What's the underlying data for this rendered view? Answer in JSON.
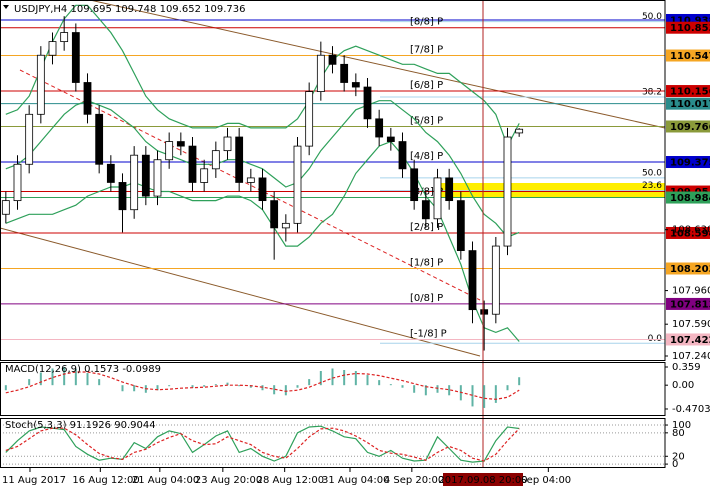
{
  "chart_data": [
    {
      "type": "candlestick",
      "title": "USDJPY,H4",
      "xlim": [
        -0.5,
        56.5
      ],
      "xticks": [
        {
          "value": 2.07,
          "label": "11 Aug 2017"
        },
        {
          "value": 8.1,
          "label": "16 Aug 12:00"
        },
        {
          "value": 13.2,
          "label": "21 Aug 04:00"
        },
        {
          "value": 18.6,
          "label": "23 Aug 20:00"
        },
        {
          "value": 23.9,
          "label": "28 Aug 12:00"
        },
        {
          "value": 29.5,
          "label": "31 Aug 04:00"
        },
        {
          "value": 34.8,
          "label": "4 Sep 20:00"
        },
        {
          "value": 46.5,
          "label": "Sep 04:00"
        }
      ],
      "current_x": {
        "value": 40.9,
        "label": "2017.09.08 20:00"
      },
      "ylim": [
        107.196,
        111.158
      ],
      "yticks": [
        {
          "value": 107.24,
          "label": "107.240"
        },
        {
          "value": 107.59,
          "label": "107.590"
        },
        {
          "value": 107.96,
          "label": "107.960"
        },
        {
          "value": 108.63,
          "label": "108.630"
        }
      ],
      "open": [
        108.8,
        108.95,
        109.35,
        109.9,
        110.55,
        110.7,
        110.8,
        110.25,
        109.9,
        109.35,
        109.15,
        108.85,
        109.45,
        109.0,
        109.4,
        109.6,
        109.55,
        109.15,
        109.3,
        109.5,
        109.65,
        109.15,
        109.2,
        108.95,
        108.65,
        108.7,
        109.55,
        110.15,
        110.55,
        110.45,
        110.25,
        110.2,
        109.85,
        109.65,
        109.6,
        109.3,
        108.95,
        108.75,
        109.2,
        108.95,
        108.4,
        107.75,
        107.7,
        108.45,
        109.695
      ],
      "high": [
        109.05,
        109.45,
        110.0,
        110.65,
        110.8,
        110.98,
        110.9,
        110.35,
        110.0,
        109.45,
        109.25,
        109.55,
        109.55,
        109.5,
        109.7,
        109.7,
        109.65,
        109.4,
        109.6,
        109.75,
        109.75,
        109.3,
        109.3,
        109.05,
        108.8,
        109.65,
        110.25,
        110.7,
        110.65,
        110.55,
        110.35,
        110.3,
        109.95,
        109.75,
        109.7,
        109.4,
        109.05,
        109.3,
        109.3,
        109.05,
        108.5,
        107.85,
        108.55,
        109.75,
        109.748
      ],
      "low": [
        108.7,
        108.85,
        109.25,
        109.8,
        110.45,
        110.6,
        110.15,
        109.8,
        109.25,
        109.05,
        108.6,
        108.75,
        108.9,
        108.9,
        109.3,
        109.45,
        109.05,
        109.05,
        109.2,
        109.4,
        109.05,
        109.05,
        108.85,
        108.3,
        108.5,
        108.6,
        109.45,
        110.05,
        110.35,
        110.15,
        110.1,
        109.75,
        109.55,
        109.5,
        109.2,
        108.85,
        108.65,
        108.65,
        108.85,
        108.3,
        107.6,
        107.3,
        107.6,
        108.35,
        109.652
      ],
      "close": [
        108.95,
        109.35,
        109.9,
        110.55,
        110.7,
        110.8,
        110.25,
        109.9,
        109.35,
        109.15,
        108.85,
        109.45,
        109.0,
        109.4,
        109.6,
        109.55,
        109.15,
        109.3,
        109.5,
        109.65,
        109.15,
        109.2,
        108.95,
        108.65,
        108.7,
        109.55,
        110.15,
        110.55,
        110.45,
        110.25,
        110.2,
        109.85,
        109.65,
        109.6,
        109.3,
        108.95,
        108.75,
        109.2,
        108.95,
        108.4,
        107.75,
        107.7,
        108.45,
        109.65,
        109.736
      ],
      "bands": {
        "color": "#2ea05a",
        "upper": [
          109.9,
          109.95,
          110.1,
          110.4,
          110.7,
          110.95,
          111.1,
          111.1,
          110.95,
          110.8,
          110.6,
          110.35,
          110.1,
          109.95,
          109.85,
          109.8,
          109.75,
          109.75,
          109.75,
          109.8,
          109.8,
          109.75,
          109.75,
          109.75,
          109.75,
          109.85,
          110.05,
          110.3,
          110.5,
          110.6,
          110.65,
          110.6,
          110.55,
          110.5,
          110.45,
          110.45,
          110.4,
          110.35,
          110.35,
          110.25,
          110.15,
          110.05,
          109.9,
          109.55,
          109.8
        ],
        "middle": [
          109.3,
          109.35,
          109.45,
          109.6,
          109.75,
          109.9,
          110.0,
          110.05,
          110.0,
          109.95,
          109.85,
          109.75,
          109.6,
          109.5,
          109.45,
          109.4,
          109.35,
          109.35,
          109.35,
          109.4,
          109.4,
          109.35,
          109.3,
          109.2,
          109.1,
          109.15,
          109.3,
          109.5,
          109.65,
          109.8,
          109.95,
          110.0,
          110.05,
          110.05,
          109.95,
          109.85,
          109.7,
          109.6,
          109.45,
          109.25,
          109.0,
          108.8,
          108.7,
          108.55,
          108.6
        ],
        "lower": [
          108.7,
          108.75,
          108.8,
          108.8,
          108.8,
          108.85,
          108.9,
          109.0,
          109.05,
          109.1,
          109.1,
          109.15,
          109.1,
          109.05,
          109.05,
          109.0,
          108.95,
          108.95,
          108.95,
          109.0,
          109.0,
          108.95,
          108.85,
          108.65,
          108.45,
          108.45,
          108.55,
          108.7,
          108.8,
          109.0,
          109.25,
          109.4,
          109.55,
          109.6,
          109.45,
          109.25,
          109.0,
          108.85,
          108.55,
          108.25,
          107.85,
          107.55,
          107.5,
          107.55,
          107.4
        ]
      },
      "levels": [
        {
          "value": 110.938,
          "color": "#0000cc"
        },
        {
          "value": 110.853,
          "color": "#cc0000",
          "label": "[8/8] P"
        },
        {
          "value": 110.547,
          "color": "#f5a623",
          "label": "[7/8] P"
        },
        {
          "value": 110.156,
          "color": "#cc0000",
          "label": "[6/8] P"
        },
        {
          "value": 110.017,
          "color": "#2a8c8c"
        },
        {
          "value": 109.766,
          "color": "#8a9a3a",
          "label": "[5/8] P"
        },
        {
          "value": 109.375,
          "color": "#0000cc",
          "label": "[4/8] P"
        },
        {
          "value": 109.05,
          "color": "#cc0000"
        },
        {
          "value": 108.984,
          "color": "#2ea05a",
          "label": "[3/8] P"
        },
        {
          "value": 108.594,
          "color": "#cc0000",
          "label": "[2/8] P"
        },
        {
          "value": 108.203,
          "color": "#f5a623",
          "label": "[1/8] P"
        },
        {
          "value": 107.813,
          "color": "#800080",
          "label": "[0/8] P"
        },
        {
          "value": 107.422,
          "color": "#f4b6c2",
          "label": "[-1/8] P"
        }
      ],
      "fib_levels": [
        {
          "value": 110.92,
          "label": "50.0"
        },
        {
          "value": 110.09,
          "label": "38.2"
        },
        {
          "value": 109.2,
          "label": "50.0"
        },
        {
          "value": 109.06,
          "label": "23.6"
        },
        {
          "value": 107.38,
          "label": "0.0"
        }
      ]
    },
    {
      "type": "macd",
      "title": "MACD(12,26,9)",
      "ylim": [
        -0.609,
        0.458
      ],
      "yticks": [
        0.359,
        {
          "value": 0,
          "label": "0.00"
        },
        -0.4703
      ],
      "histogram_color": "#5fb3a5",
      "signal_color": "#dd2222",
      "histogram": [
        -0.1,
        0.0,
        0.12,
        0.25,
        0.33,
        0.36,
        0.32,
        0.24,
        0.12,
        0.0,
        -0.12,
        -0.12,
        -0.15,
        -0.1,
        -0.02,
        0.0,
        -0.05,
        -0.03,
        0.02,
        0.05,
        -0.02,
        -0.05,
        -0.1,
        -0.18,
        -0.2,
        -0.05,
        0.12,
        0.28,
        0.33,
        0.3,
        0.28,
        0.2,
        0.1,
        0.02,
        -0.05,
        -0.15,
        -0.2,
        -0.15,
        -0.2,
        -0.3,
        -0.42,
        -0.45,
        -0.35,
        -0.1,
        0.1573
      ],
      "signal": [
        -0.15,
        -0.1,
        -0.03,
        0.06,
        0.15,
        0.22,
        0.26,
        0.26,
        0.22,
        0.15,
        0.06,
        -0.01,
        -0.07,
        -0.09,
        -0.08,
        -0.06,
        -0.05,
        -0.04,
        -0.02,
        0.0,
        0.0,
        -0.01,
        -0.04,
        -0.08,
        -0.12,
        -0.1,
        -0.04,
        0.05,
        0.14,
        0.2,
        0.23,
        0.22,
        0.19,
        0.14,
        0.09,
        0.03,
        -0.03,
        -0.06,
        -0.09,
        -0.14,
        -0.2,
        -0.26,
        -0.28,
        -0.24,
        -0.0989
      ]
    },
    {
      "type": "stochastic",
      "title": "Stoch(5,3,3)",
      "ylim": [
        -10,
        118
      ],
      "yticks": [
        100,
        80,
        20,
        0
      ],
      "k_color": "#2ea05a",
      "d_color": "#dd2222",
      "k": [
        30,
        60,
        85,
        95,
        92,
        88,
        45,
        25,
        10,
        15,
        12,
        55,
        40,
        70,
        85,
        78,
        30,
        50,
        72,
        85,
        30,
        40,
        20,
        8,
        20,
        80,
        95,
        97,
        85,
        70,
        65,
        30,
        20,
        35,
        15,
        8,
        10,
        70,
        40,
        10,
        5,
        8,
        60,
        95,
        91.1926
      ],
      "d": [
        35,
        45,
        65,
        85,
        92,
        92,
        75,
        50,
        27,
        17,
        12,
        30,
        38,
        55,
        68,
        78,
        60,
        50,
        52,
        70,
        60,
        50,
        30,
        20,
        15,
        40,
        70,
        90,
        92,
        85,
        72,
        55,
        35,
        28,
        25,
        18,
        10,
        30,
        45,
        35,
        15,
        8,
        25,
        60,
        90.9044
      ]
    }
  ]
}
